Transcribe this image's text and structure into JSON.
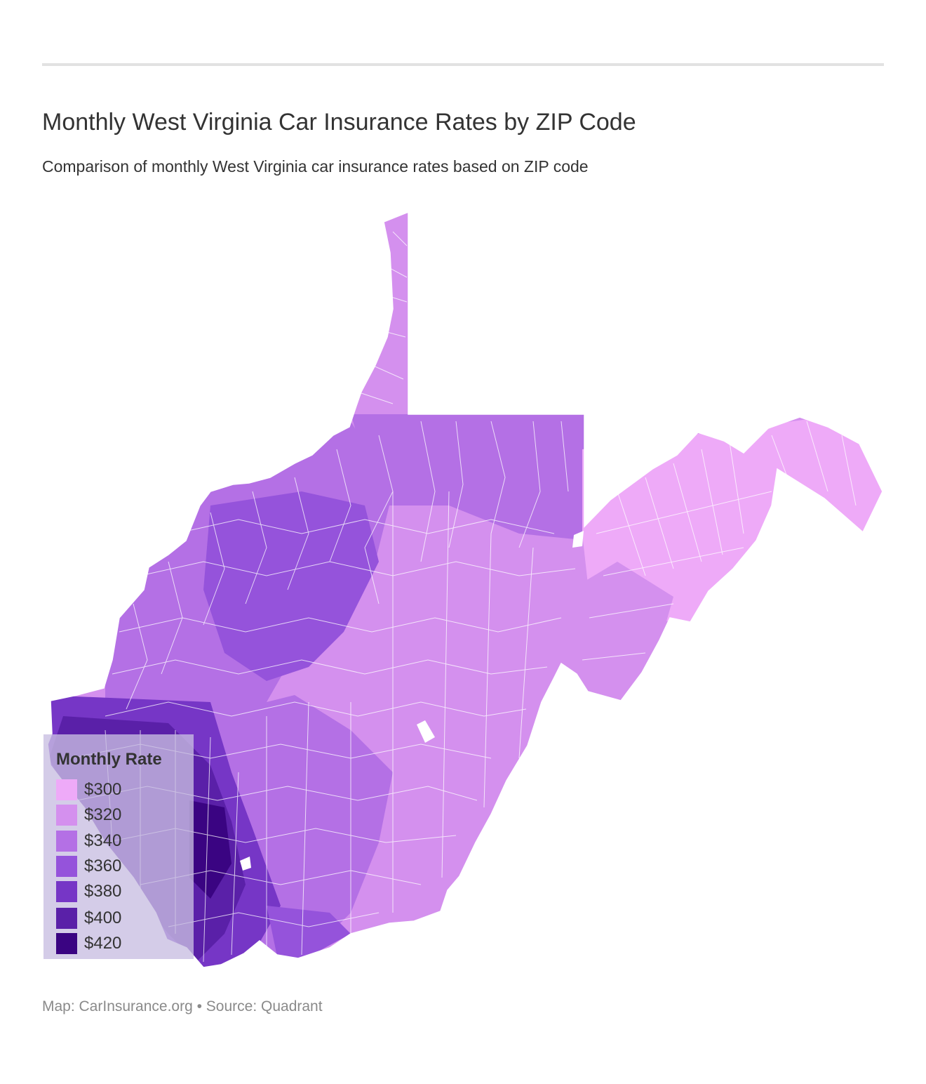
{
  "header": {
    "title": "Monthly West Virginia Car Insurance Rates by ZIP Code",
    "subtitle": "Comparison of monthly West Virginia car insurance rates based on ZIP code"
  },
  "legend": {
    "title": "Monthly Rate",
    "items": [
      {
        "label": "$300",
        "color": "#eeaaf8"
      },
      {
        "label": "$320",
        "color": "#d490ee"
      },
      {
        "label": "$340",
        "color": "#b470e5"
      },
      {
        "label": "$360",
        "color": "#9553db"
      },
      {
        "label": "$380",
        "color": "#7636c6"
      },
      {
        "label": "$400",
        "color": "#5a20a8"
      },
      {
        "label": "$420",
        "color": "#3a0482"
      }
    ]
  },
  "footer": {
    "credit": "Map: CarInsurance.org • Source: Quadrant"
  }
}
